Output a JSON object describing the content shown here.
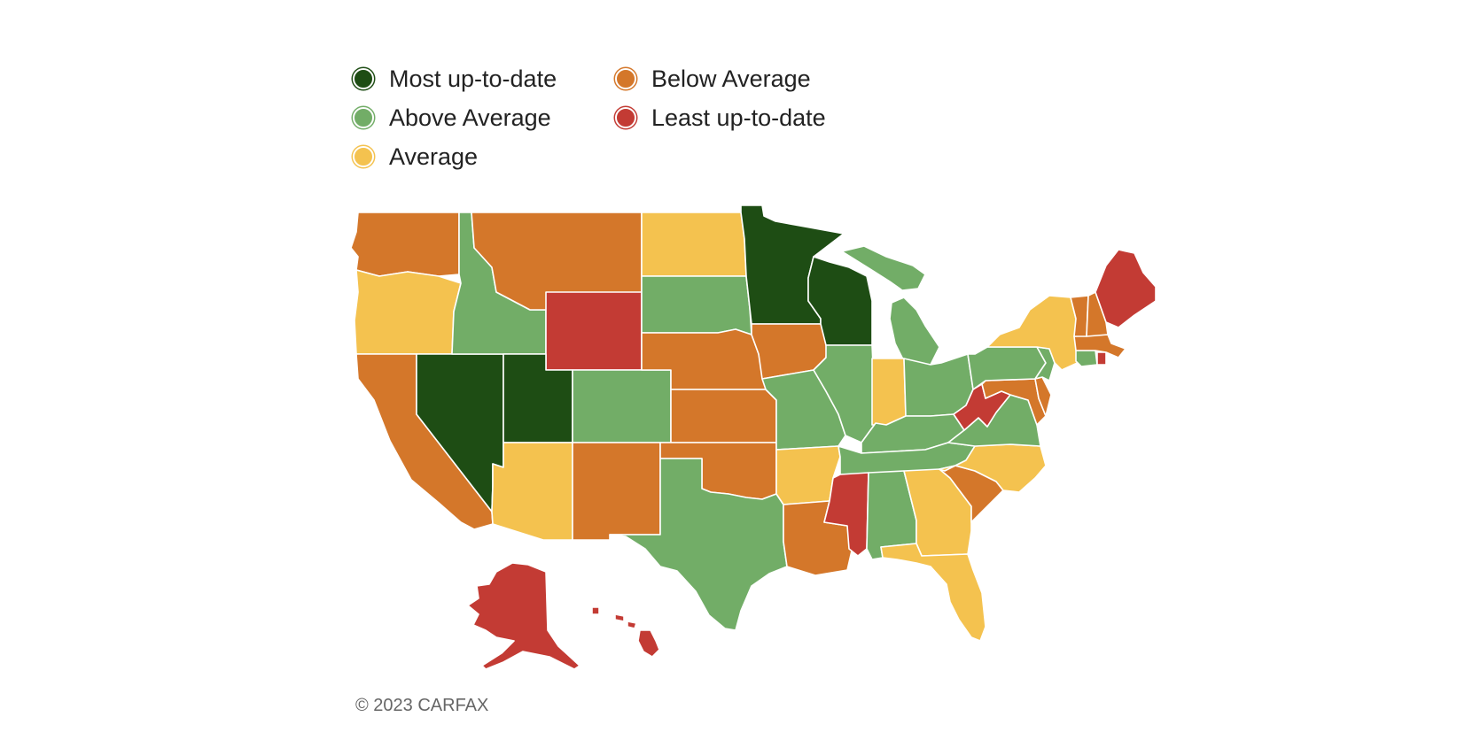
{
  "legend": {
    "most": {
      "label": "Most up-to-date",
      "color": "#1e4d14"
    },
    "above": {
      "label": "Above Average",
      "color": "#72ad67"
    },
    "average": {
      "label": "Average",
      "color": "#f4c24f"
    },
    "below": {
      "label": "Below Average",
      "color": "#d4772a"
    },
    "least": {
      "label": "Least up-to-date",
      "color": "#c33b34"
    }
  },
  "copyright": "© 2023 CARFAX",
  "states": {
    "WA": "below",
    "OR": "average",
    "CA": "below",
    "NV": "most",
    "ID": "above",
    "MT": "below",
    "WY": "least",
    "UT": "most",
    "CO": "above",
    "AZ": "average",
    "NM": "below",
    "ND": "average",
    "SD": "above",
    "NE": "below",
    "KS": "below",
    "OK": "below",
    "TX": "above",
    "MN": "most",
    "IA": "below",
    "MO": "above",
    "AR": "average",
    "LA": "below",
    "WI": "most",
    "IL": "above",
    "MI": "above",
    "IN": "average",
    "OH": "above",
    "KY": "above",
    "TN": "above",
    "MS": "least",
    "AL": "above",
    "GA": "average",
    "FL": "average",
    "SC": "below",
    "NC": "average",
    "VA": "above",
    "WV": "least",
    "PA": "above",
    "NY": "average",
    "NJ": "above",
    "DE": "below",
    "MD": "below",
    "CT": "above",
    "RI": "least",
    "MA": "below",
    "VT": "below",
    "NH": "below",
    "ME": "least",
    "AK": "least",
    "HI": "least"
  }
}
